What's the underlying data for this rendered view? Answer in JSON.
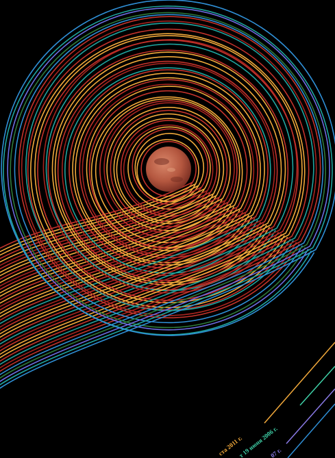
{
  "poster": {
    "background": "#000000",
    "planet": {
      "icon": "mars-planet-icon",
      "colors": [
        "#d9876a",
        "#b4573f",
        "#7a2e22"
      ]
    },
    "palette": [
      "#f2a93b",
      "#e8b23f",
      "#c4332b",
      "#a5241f",
      "#1fa5a0",
      "#2f8fd6",
      "#6c6ce0",
      "#8a6a2f",
      "#2e7a3c"
    ],
    "labels": [
      {
        "text": "ста 2011 г.",
        "color": "#f2a93b"
      },
      {
        "text": "т 19 июня 2006 г.",
        "color": "#3fd1a8"
      },
      {
        "text": "07 г.",
        "color": "#8a7ae6"
      }
    ]
  }
}
